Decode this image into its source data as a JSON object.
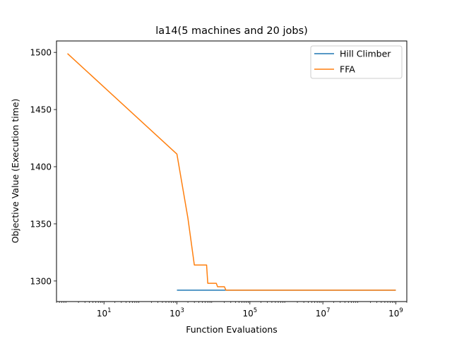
{
  "chart_data": {
    "type": "line",
    "title": "la14(5 machines and 20 jobs)",
    "xlabel": "Function Evaluations",
    "ylabel": "Objective Value (Execution time)",
    "x_scale": "log",
    "xlim": [
      0.5,
      2000000000
    ],
    "ylim": [
      1282,
      1510
    ],
    "x_ticks": [
      {
        "value": 10,
        "base": "10",
        "exp": "1"
      },
      {
        "value": 1000,
        "base": "10",
        "exp": "3"
      },
      {
        "value": 100000,
        "base": "10",
        "exp": "5"
      },
      {
        "value": 10000000,
        "base": "10",
        "exp": "7"
      },
      {
        "value": 1000000000,
        "base": "10",
        "exp": "9"
      }
    ],
    "y_ticks": [
      1300,
      1350,
      1400,
      1450,
      1500
    ],
    "grid": false,
    "legend": "upper-right",
    "series": [
      {
        "name": "Hill Climber",
        "color": "#1f77b4",
        "x": [
          1000,
          1000000000
        ],
        "y": [
          1292,
          1292
        ]
      },
      {
        "name": "FFA",
        "color": "#ff7f0e",
        "x": [
          1,
          1000,
          2000,
          3000,
          6500,
          7000,
          12000,
          13000,
          20000,
          22000,
          1000000000
        ],
        "y": [
          1499,
          1411,
          1355,
          1314,
          1314,
          1298,
          1298,
          1295,
          1295,
          1292,
          1292
        ]
      }
    ]
  }
}
